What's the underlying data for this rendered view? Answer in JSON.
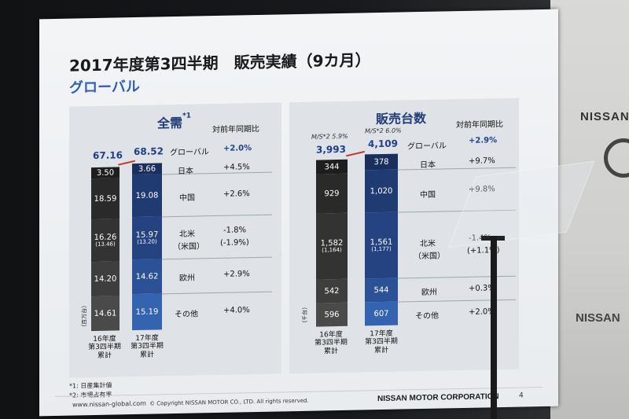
{
  "slide": {
    "title": "2017年度第3四半期　販売実績（9カ月）",
    "subtitle": "グローバル",
    "footnote1": "*1: 日産集計値",
    "footnote2": "*2: 市場占有率",
    "url": "www.nissan-global.com",
    "copyright": "© Copyright NISSAN MOTOR CO., LTD. All rights reserved.",
    "corporation": "NISSAN MOTOR CORPORATION",
    "page_number": "4"
  },
  "backdrop": {
    "logo": "NISSAN",
    "logo2": "NISSAN"
  },
  "panel_demand": {
    "title": "全需",
    "title_sup": "*1",
    "header": "対前年同期比",
    "unit": "（百万台）",
    "fy16_total": "67.16",
    "fy17_total": "68.52",
    "fy16_label": [
      "16年度",
      "第3四半期",
      "累計"
    ],
    "fy17_label": [
      "17年度",
      "第3四半期",
      "累計"
    ],
    "global_label": "グローバル",
    "global_change": "+2.0%",
    "rows": [
      {
        "label": "日本",
        "fy16": "3.50",
        "fy17": "3.66",
        "change": "+4.5%"
      },
      {
        "label": "中国",
        "fy16": "18.59",
        "fy17": "19.08",
        "change": "+2.6%"
      },
      {
        "label": "北米",
        "label2": "（米国）",
        "fy16": "16.26",
        "fy16_sub": "(13.46)",
        "fy17": "15.97",
        "fy17_sub": "(13.20)",
        "change": "-1.8%",
        "change2": "(-1.9%)"
      },
      {
        "label": "欧州",
        "fy16": "14.20",
        "fy17": "14.62",
        "change": "+2.9%"
      },
      {
        "label": "その他",
        "fy16": "14.61",
        "fy17": "15.19",
        "change": "+4.0%"
      }
    ]
  },
  "panel_sales": {
    "title": "販売台数",
    "header": "対前年同期比",
    "unit": "（千台）",
    "fy16_ms": "M/S*2 5.9%",
    "fy17_ms": "M/S*2 6.0%",
    "fy16_total": "3,993",
    "fy17_total": "4,109",
    "fy16_label": [
      "16年度",
      "第3四半期",
      "累計"
    ],
    "fy17_label": [
      "17年度",
      "第3四半期",
      "累計"
    ],
    "global_label": "グローバル",
    "global_change": "+2.9%",
    "rows": [
      {
        "label": "日本",
        "fy16": "344",
        "fy17": "378",
        "change": "+9.7%"
      },
      {
        "label": "中国",
        "fy16": "929",
        "fy17": "1,020",
        "change": "+9.8%"
      },
      {
        "label": "北米",
        "label2": "（米国）",
        "fy16": "1,582",
        "fy16_sub": "(1,164)",
        "fy17": "1,561",
        "fy17_sub": "(1,177)",
        "change": "-1.4%",
        "change2": "(+1.1%)"
      },
      {
        "label": "欧州",
        "fy16": "542",
        "fy17": "544",
        "change": "+0.3%"
      },
      {
        "label": "その他",
        "fy16": "596",
        "fy17": "607",
        "change": "+2.0%"
      }
    ]
  },
  "colors": {
    "fy16_bar": "#2b2b2b",
    "fy17_bar": "#23407e",
    "accent": "#2f5fb0"
  }
}
